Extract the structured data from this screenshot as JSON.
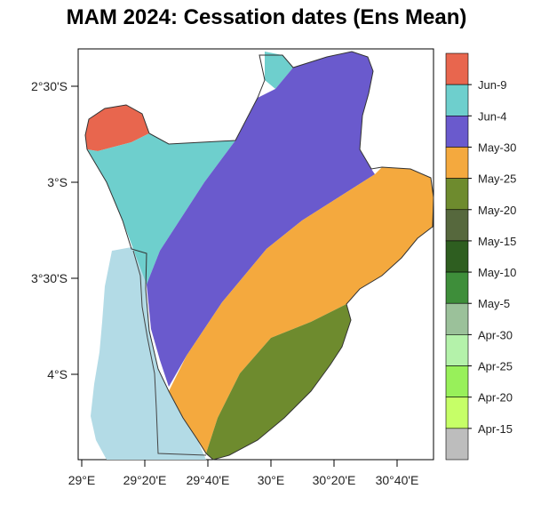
{
  "title": "MAM 2024: Cessation dates  (Ens Mean)",
  "axes": {
    "y_ticks": [
      "2°30'S",
      "3°S",
      "3°30'S",
      "4°S"
    ],
    "x_ticks": [
      "29°E",
      "29°20'E",
      "29°40'E",
      "30°E",
      "30°20'E",
      "30°40'E"
    ]
  },
  "legend": {
    "labels": [
      "Jun-9",
      "Jun-4",
      "May-30",
      "May-25",
      "May-20",
      "May-15",
      "May-10",
      "May-5",
      "Apr-30",
      "Apr-25",
      "Apr-20",
      "Apr-15"
    ],
    "colors": [
      "#e8664e",
      "#6ecfcd",
      "#6a5acd",
      "#f4a93e",
      "#6e8b2e",
      "#56683d",
      "#2e5e20",
      "#3e8e3a",
      "#9bc19a",
      "#b4f2aa",
      "#98f05a",
      "#c6ff67",
      "#bdbdbd"
    ]
  },
  "regions": {
    "lake_color": "#b3dbe6",
    "zone_names": [
      "Jun-9",
      "Jun-4",
      "May-30",
      "May-25",
      "May-20"
    ]
  }
}
